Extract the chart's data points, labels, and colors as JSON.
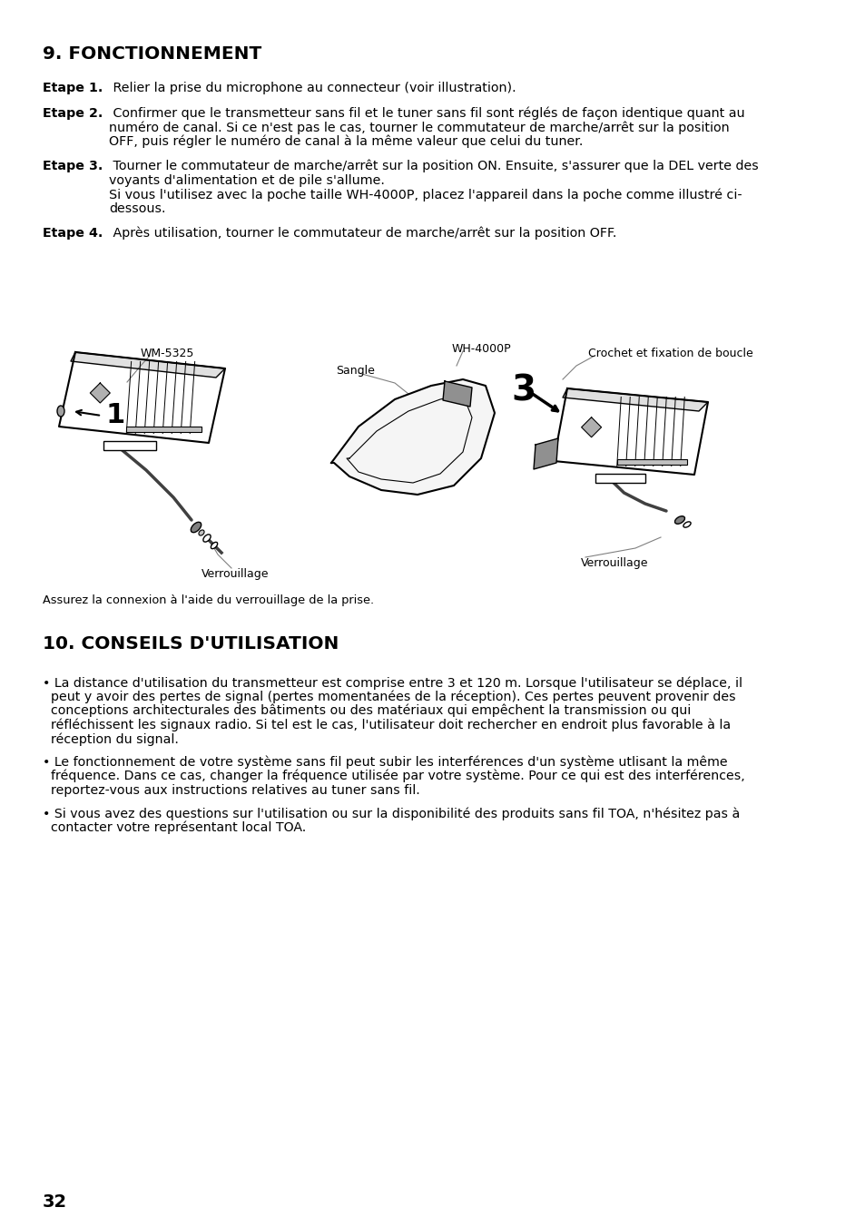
{
  "bg_color": "#ffffff",
  "title1": "9. FONCTIONNEMENT",
  "title2": "10. CONSEILS D'UTILISATION",
  "step1_bold": "Etape 1.",
  "step1_rest": " Relier la prise du microphone au connecteur (voir illustration).",
  "step2_bold": "Etape 2.",
  "step2_line1": " Confirmer que le transmetteur sans fil et le tuner sans fil sont réglés de façon identique quant au",
  "step2_line2": "numéro de canal. Si ce n'est pas le cas, tourner le commutateur de marche/arrêt sur la position",
  "step2_line3": "OFF, puis régler le numéro de canal à la même valeur que celui du tuner.",
  "step3_bold": "Etape 3.",
  "step3_line1": " Tourner le commutateur de marche/arrêt sur la position ON. Ensuite, s'assurer que la DEL verte des",
  "step3_line2": "voyants d'alimentation et de pile s'allume.",
  "step3_line3": "Si vous l'utilisez avec la poche taille WH-4000P, placez l'appareil dans la poche comme illustré ci-",
  "step3_line4": "dessous.",
  "step4_bold": "Etape 4.",
  "step4_rest": " Après utilisation, tourner le commutateur de marche/arrêt sur la position OFF.",
  "caption": "Assurez la connexion à l'aide du verrouillage de la prise.",
  "label_wm5325": "WM-5325",
  "label_wh4000p": "WH-4000P",
  "label_sangle": "Sangle",
  "label_crochet": "Crochet et fixation de boucle",
  "label_ver1": "Verrouillage",
  "label_ver2": "Verrouillage",
  "num1": "1",
  "num3": "3",
  "b1l1": "• La distance d'utilisation du transmetteur est comprise entre 3 et 120 m. Lorsque l'utilisateur se déplace, il",
  "b1l2": "  peut y avoir des pertes de signal (pertes momentanées de la réception). Ces pertes peuvent provenir des",
  "b1l3": "  conceptions architecturales des bâtiments ou des matériaux qui empêchent la transmission ou qui",
  "b1l4": "  réfléchissent les signaux radio. Si tel est le cas, l'utilisateur doit rechercher en endroit plus favorable à la",
  "b1l5": "  réception du signal.",
  "b2l1": "• Le fonctionnement de votre système sans fil peut subir les interférences d'un système utlisant la même",
  "b2l2": "  fréquence. Dans ce cas, changer la fréquence utilisée par votre système. Pour ce qui est des interférences,",
  "b2l3": "  reportez-vous aux instructions relatives au tuner sans fil.",
  "b3l1": "• Si vous avez des questions sur l'utilisation ou sur la disponibilité des produits sans fil TOA, n'hésitez pas à",
  "b3l2": "  contacter votre représentant local TOA.",
  "page_number": "32"
}
